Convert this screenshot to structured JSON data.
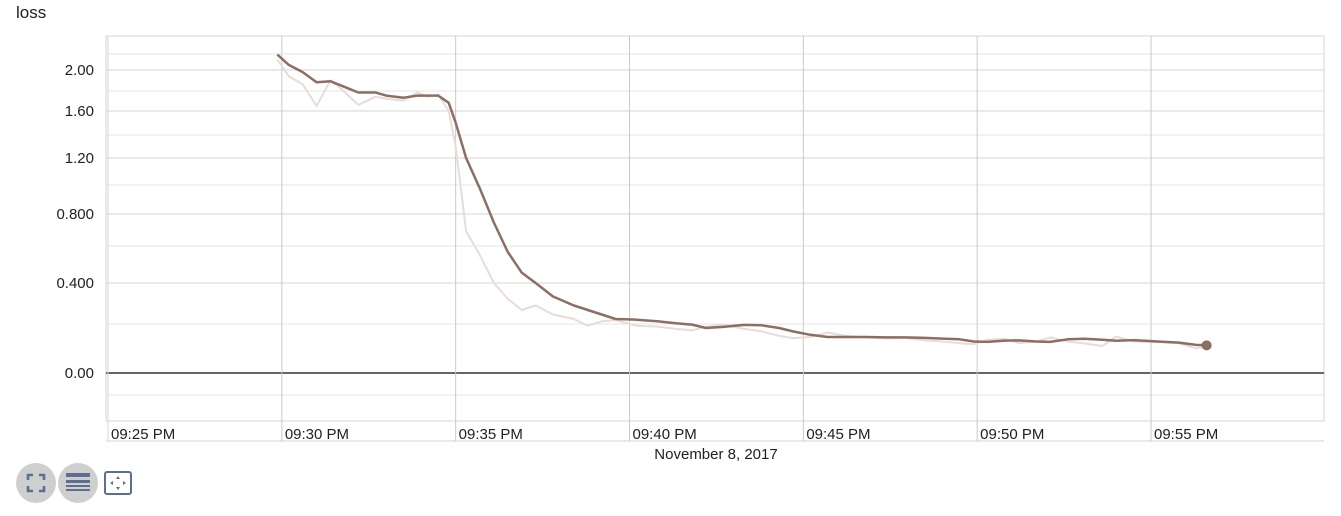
{
  "chart_title": "loss",
  "toolbar": {
    "buttons": [
      {
        "icon": "fullscreen-icon"
      },
      {
        "icon": "data-list-icon"
      },
      {
        "icon": "fit-domain-icon"
      }
    ]
  },
  "colors": {
    "series": "#8d6e63",
    "raw": "#e8dcd8",
    "grid": "#d6d6d6",
    "zero_line": "#666666",
    "button": "#cfcfcf",
    "icon": "#5c6f91"
  },
  "chart_data": {
    "type": "line",
    "title": "loss",
    "xlabel": "November 8, 2017",
    "ylabel": "",
    "x_ticks": [
      "09:25 PM",
      "09:30 PM",
      "09:35 PM",
      "09:40 PM",
      "09:45 PM",
      "09:50 PM",
      "09:55 PM"
    ],
    "y_ticks": [
      "0.00",
      "0.400",
      "0.800",
      "1.20",
      "1.60",
      "2.00"
    ],
    "y_tick_values": [
      0.0,
      0.4,
      0.8,
      1.2,
      1.6,
      2.0
    ],
    "x_range_minutes_after_9pm": [
      24.93,
      35.42
    ],
    "ylim": [
      -0.34,
      2.32
    ],
    "y_scale": "log1p-like (tensorboard smoothed scale)",
    "grid": true,
    "series": [
      {
        "smoothed": true,
        "x_minutes_after_9pm": [
          29.87,
          30.2,
          30.6,
          31.0,
          31.4,
          31.7,
          32.2,
          32.7,
          33.0,
          33.5,
          33.9,
          34.2,
          34.5,
          34.8,
          35.0,
          35.3,
          35.7,
          36.1,
          36.5,
          36.9,
          37.3,
          37.8,
          38.4,
          38.8,
          39.2,
          39.6,
          40.2,
          40.8,
          41.4,
          41.8,
          42.2,
          42.7,
          43.3,
          43.8,
          44.3,
          44.7,
          45.2,
          45.7,
          46.2,
          46.8,
          47.4,
          47.9,
          48.5,
          49.0,
          49.5,
          49.9,
          50.3,
          50.8,
          51.2,
          51.7,
          52.1,
          52.6,
          53.1,
          53.6,
          54.0,
          54.5,
          55.0,
          55.4,
          55.8,
          56.3,
          56.6
        ],
        "y": [
          2.15,
          2.05,
          1.98,
          1.88,
          1.89,
          1.85,
          1.78,
          1.78,
          1.75,
          1.73,
          1.75,
          1.75,
          1.75,
          1.68,
          1.5,
          1.2,
          0.98,
          0.75,
          0.58,
          0.46,
          0.4,
          0.34,
          0.3,
          0.28,
          0.26,
          0.24,
          0.237,
          0.23,
          0.22,
          0.215,
          0.2,
          0.205,
          0.214,
          0.212,
          0.2,
          0.185,
          0.17,
          0.16,
          0.16,
          0.16,
          0.158,
          0.158,
          0.156,
          0.153,
          0.15,
          0.14,
          0.138,
          0.144,
          0.145,
          0.14,
          0.138,
          0.15,
          0.152,
          0.148,
          0.143,
          0.146,
          0.142,
          0.138,
          0.135,
          0.125,
          0.123
        ]
      },
      {
        "smoothed": false,
        "x_minutes_after_9pm": [
          29.87,
          30.2,
          30.6,
          31.0,
          31.4,
          31.7,
          32.2,
          32.7,
          33.0,
          33.5,
          33.9,
          34.2,
          34.5,
          34.8,
          35.0,
          35.3,
          35.7,
          36.1,
          36.5,
          36.9,
          37.3,
          37.8,
          38.4,
          38.8,
          39.2,
          39.6,
          40.2,
          40.8,
          41.4,
          41.8,
          42.2,
          42.7,
          43.3,
          43.8,
          44.3,
          44.7,
          45.2,
          45.7,
          46.2,
          46.8,
          47.4,
          47.9,
          48.5,
          49.0,
          49.5,
          49.9,
          50.3,
          50.8,
          51.2,
          51.7,
          52.1,
          52.6,
          53.1,
          53.6,
          54.0,
          54.5,
          55.0,
          55.4,
          55.8,
          56.3,
          56.6
        ],
        "y": [
          2.1,
          1.94,
          1.86,
          1.65,
          1.9,
          1.82,
          1.66,
          1.74,
          1.72,
          1.7,
          1.78,
          1.74,
          1.76,
          1.6,
          1.3,
          0.7,
          0.56,
          0.4,
          0.33,
          0.28,
          0.3,
          0.26,
          0.24,
          0.21,
          0.23,
          0.235,
          0.21,
          0.206,
          0.195,
          0.19,
          0.205,
          0.215,
          0.196,
          0.185,
          0.165,
          0.155,
          0.16,
          0.18,
          0.165,
          0.158,
          0.154,
          0.156,
          0.145,
          0.14,
          0.132,
          0.128,
          0.148,
          0.152,
          0.132,
          0.14,
          0.158,
          0.14,
          0.131,
          0.12,
          0.162,
          0.14,
          0.138,
          0.136,
          0.132,
          0.11,
          0.12
        ]
      }
    ]
  }
}
